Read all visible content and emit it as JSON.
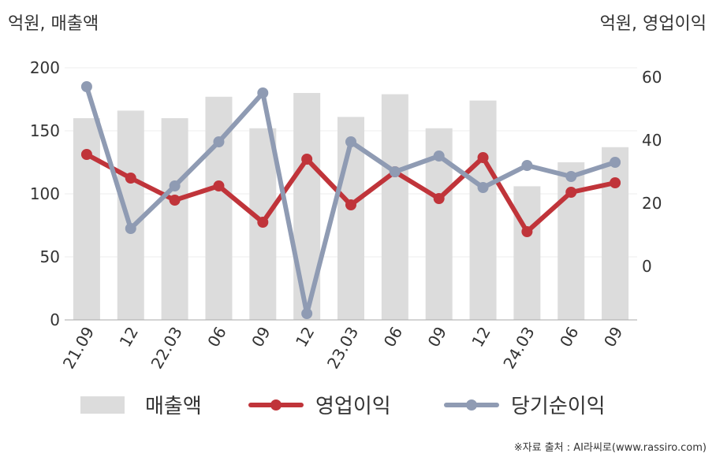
{
  "chart_data": {
    "type": "bar",
    "categories": [
      "21.09",
      "12",
      "22.03",
      "06",
      "09",
      "12",
      "23.03",
      "06",
      "09",
      "12",
      "24.03",
      "06",
      "09"
    ],
    "left_axis": {
      "label": "억원, 매출액",
      "ylim": [
        0,
        200
      ],
      "ticks": [
        "0",
        "50",
        "100",
        "150",
        "200"
      ]
    },
    "right_axis": {
      "label": "억원, 영업이익",
      "ylim": [
        -17,
        63
      ],
      "ticks": [
        "0",
        "20",
        "40",
        "60"
      ]
    },
    "series": [
      {
        "name": "매출액",
        "type": "bar",
        "axis": "left",
        "color": "#dcdcdc",
        "values": [
          160,
          166,
          160,
          177,
          152,
          180,
          161,
          179,
          152,
          174,
          106,
          125,
          137
        ]
      },
      {
        "name": "영업이익",
        "type": "line",
        "axis": "right",
        "color": "#c0343a",
        "values": [
          35.5,
          28,
          21,
          25.5,
          14,
          34,
          19.5,
          30,
          21.5,
          34.5,
          11,
          23.5,
          26.5
        ]
      },
      {
        "name": "당기순이익",
        "type": "line",
        "axis": "right",
        "color": "#8f9bb3",
        "values": [
          57,
          12,
          25.5,
          39.5,
          55,
          -15,
          39.5,
          30,
          35,
          25,
          32,
          28.5,
          33
        ]
      }
    ],
    "grid": true,
    "legend_position": "bottom"
  },
  "source_text": "※자료 출처 : AI라씨로(www.rassiro.com)"
}
